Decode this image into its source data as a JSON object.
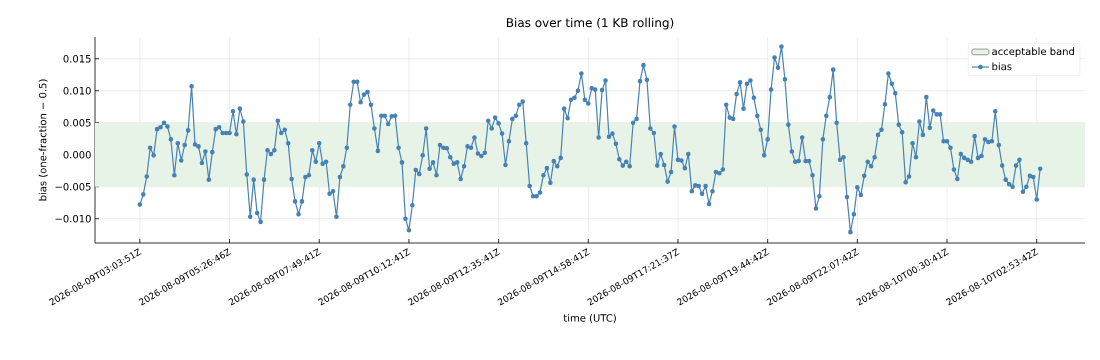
{
  "chart_data": {
    "type": "line",
    "title": "Bias over time (1 KB rolling)",
    "xlabel": "time (UTC)",
    "ylabel": "bias (one-fraction − 0.5)",
    "categories": [
      "2026-08-09T03:03:51Z",
      null,
      null,
      null,
      null,
      null,
      null,
      null,
      null,
      null,
      null,
      null,
      null,
      null,
      null,
      null,
      null,
      null,
      null,
      null,
      null,
      null,
      null,
      null,
      null,
      null,
      "2026-08-09T05:26:46Z",
      null,
      null,
      null,
      null,
      null,
      null,
      null,
      null,
      null,
      null,
      null,
      null,
      null,
      null,
      null,
      null,
      null,
      null,
      null,
      null,
      null,
      null,
      null,
      null,
      null,
      "2026-08-09T07:49:41Z",
      null,
      null,
      null,
      null,
      null,
      null,
      null,
      null,
      null,
      null,
      null,
      null,
      null,
      null,
      null,
      null,
      null,
      null,
      null,
      null,
      null,
      null,
      null,
      null,
      null,
      "2026-08-09T10:12:41Z",
      null,
      null,
      null,
      null,
      null,
      null,
      null,
      null,
      null,
      null,
      null,
      null,
      null,
      null,
      null,
      null,
      null,
      null,
      null,
      null,
      null,
      null,
      null,
      null,
      null,
      "2026-08-09T12:35:41Z",
      null,
      null,
      null,
      null,
      null,
      null,
      null,
      null,
      null,
      null,
      null,
      null,
      null,
      null,
      null,
      null,
      null,
      null,
      null,
      null,
      null,
      null,
      null,
      null,
      null,
      "2026-08-09T14:58:41Z",
      null,
      null,
      null,
      null,
      null,
      null,
      null,
      null,
      null,
      null,
      null,
      null,
      null,
      null,
      null,
      null,
      null,
      null,
      null,
      null,
      null,
      null,
      null,
      null,
      null,
      "2026-08-09T17:21:37Z",
      null,
      null,
      null,
      null,
      null,
      null,
      null,
      null,
      null,
      null,
      null,
      null,
      null,
      null,
      null,
      null,
      null,
      null,
      null,
      null,
      null,
      null,
      null,
      null,
      null,
      "2026-08-09T19:44:42Z",
      null,
      null,
      null,
      null,
      null,
      null,
      null,
      null,
      null,
      null,
      null,
      null,
      null,
      null,
      null,
      null,
      null,
      null,
      null,
      null,
      null,
      null,
      null,
      null,
      null,
      "2026-08-09T22:07:42Z",
      null,
      null,
      null,
      null,
      null,
      null,
      null,
      null,
      null,
      null,
      null,
      null,
      null,
      null,
      null,
      null,
      null,
      null,
      null,
      null,
      null,
      null,
      null,
      null,
      null,
      "2026-08-10T00:30:41Z",
      null,
      null,
      null,
      null,
      null,
      null,
      null,
      null,
      null,
      null,
      null,
      null,
      null,
      null,
      null,
      null,
      null,
      null,
      null,
      null,
      null,
      null,
      null,
      null,
      null,
      "2026-08-10T02:53:42Z",
      null
    ],
    "series": [
      {
        "name": "bias",
        "color": "#4682b4",
        "values": [
          -0.0078,
          -0.0062,
          -0.0034,
          0.0011,
          -0.0001,
          0.004,
          0.0043,
          0.005,
          0.0044,
          0.0024,
          -0.0032,
          0.0018,
          -0.0009,
          0.0015,
          0.0038,
          0.0107,
          0.0016,
          0.0013,
          -0.0013,
          0.0005,
          -0.0039,
          0.0004,
          0.004,
          0.0043,
          0.0034,
          0.0034,
          0.0034,
          0.0068,
          0.0032,
          0.0072,
          0.0052,
          -0.0031,
          -0.0097,
          -0.0039,
          -0.0091,
          -0.0105,
          -0.0039,
          0.0007,
          0.0001,
          0.0007,
          0.0053,
          0.0034,
          0.0039,
          0.0018,
          -0.0038,
          -0.0073,
          -0.0093,
          -0.0073,
          -0.0035,
          -0.0032,
          0.0007,
          -0.0011,
          0.0018,
          -0.0014,
          -0.0011,
          -0.0061,
          -0.0057,
          -0.0097,
          -0.0035,
          -0.0018,
          0.0011,
          0.0078,
          0.0114,
          0.0114,
          0.0082,
          0.0094,
          0.0098,
          0.0078,
          0.0041,
          0.0006,
          0.0061,
          0.0061,
          0.0048,
          0.006,
          0.0061,
          0.0011,
          -0.0012,
          -0.01,
          -0.0118,
          -0.0079,
          -0.0024,
          -0.003,
          -0.0001,
          0.0041,
          -0.0022,
          -0.0012,
          -0.0032,
          0.0015,
          0.0011,
          0.001,
          -0.0004,
          -0.0014,
          -0.0012,
          -0.0038,
          -0.0018,
          0.0013,
          0.0011,
          0.0027,
          0.0002,
          -0.0002,
          0.0003,
          0.0053,
          0.0041,
          0.0058,
          0.0049,
          0.0033,
          -0.0016,
          0.0021,
          0.0056,
          0.0061,
          0.0078,
          0.0083,
          0.0018,
          -0.0049,
          -0.0065,
          -0.0065,
          -0.0059,
          -0.0032,
          -0.0021,
          -0.0044,
          -0.001,
          -0.0018,
          -0.0005,
          0.0072,
          0.0057,
          0.0086,
          0.0089,
          0.01,
          0.0127,
          0.0086,
          0.008,
          0.0104,
          0.0102,
          0.0027,
          0.0101,
          0.0116,
          0.0028,
          0.0033,
          0.0017,
          -0.0007,
          -0.0017,
          -0.0011,
          -0.0018,
          0.005,
          0.0056,
          0.0115,
          0.014,
          0.0117,
          0.0041,
          0.0034,
          -0.0017,
          0.0001,
          -0.0016,
          -0.0042,
          -0.0027,
          0.0044,
          -0.0008,
          -0.0009,
          -0.0021,
          0.0001,
          -0.0057,
          -0.0048,
          -0.0049,
          -0.0061,
          -0.0049,
          -0.0077,
          -0.0057,
          -0.0027,
          -0.0029,
          -0.0023,
          0.0078,
          0.0058,
          0.0056,
          0.0095,
          0.0113,
          0.0072,
          0.0111,
          0.0116,
          0.0089,
          0.0061,
          0.0039,
          -0.0001,
          0.0024,
          0.0102,
          0.0152,
          0.0136,
          0.0169,
          0.0118,
          0.0047,
          0.0005,
          -0.0011,
          -0.001,
          0.0027,
          -0.001,
          -0.001,
          -0.0032,
          -0.0084,
          -0.0065,
          0.0024,
          0.0061,
          0.009,
          0.0133,
          0.005,
          -0.0008,
          -0.0004,
          -0.0066,
          -0.0121,
          -0.0093,
          -0.0051,
          -0.0063,
          -0.0033,
          -0.0011,
          -0.0018,
          -0.0004,
          0.0031,
          0.0039,
          0.0079,
          0.0127,
          0.0111,
          0.0096,
          0.0047,
          0.0035,
          -0.0043,
          -0.0034,
          0.0018,
          -0.0004,
          0.0052,
          0.0031,
          0.009,
          0.0042,
          0.0069,
          0.0063,
          0.0063,
          0.0021,
          0.0021,
          0.0011,
          -0.0023,
          -0.0038,
          0.0001,
          -0.0005,
          -0.0008,
          -0.0011,
          0.0029,
          -0.0005,
          -0.0002,
          0.0024,
          0.002,
          0.0021,
          0.0068,
          0.0015,
          -0.0017,
          -0.0039,
          -0.0046,
          -0.005,
          -0.0017,
          -0.0008,
          -0.0058,
          -0.005,
          -0.0033,
          -0.0035,
          -0.007,
          -0.0022
        ]
      }
    ],
    "bands": [
      {
        "axis": "y",
        "from": -0.005,
        "to": 0.005,
        "label": "acceptable band",
        "color": "#e8f3e8"
      }
    ],
    "ylim": [
      -0.0138,
      0.0184
    ],
    "yticks": [
      {
        "value": -0.01,
        "label": "−0.010"
      },
      {
        "value": -0.005,
        "label": "−0.005"
      },
      {
        "value": 0,
        "label": "0.000"
      },
      {
        "value": 0.005,
        "label": "0.005"
      },
      {
        "value": 0.01,
        "label": "0.010"
      },
      {
        "value": 0.015,
        "label": "0.015"
      }
    ],
    "grid": true,
    "legend": "top right",
    "marker": "circle",
    "line_style": "solid"
  }
}
